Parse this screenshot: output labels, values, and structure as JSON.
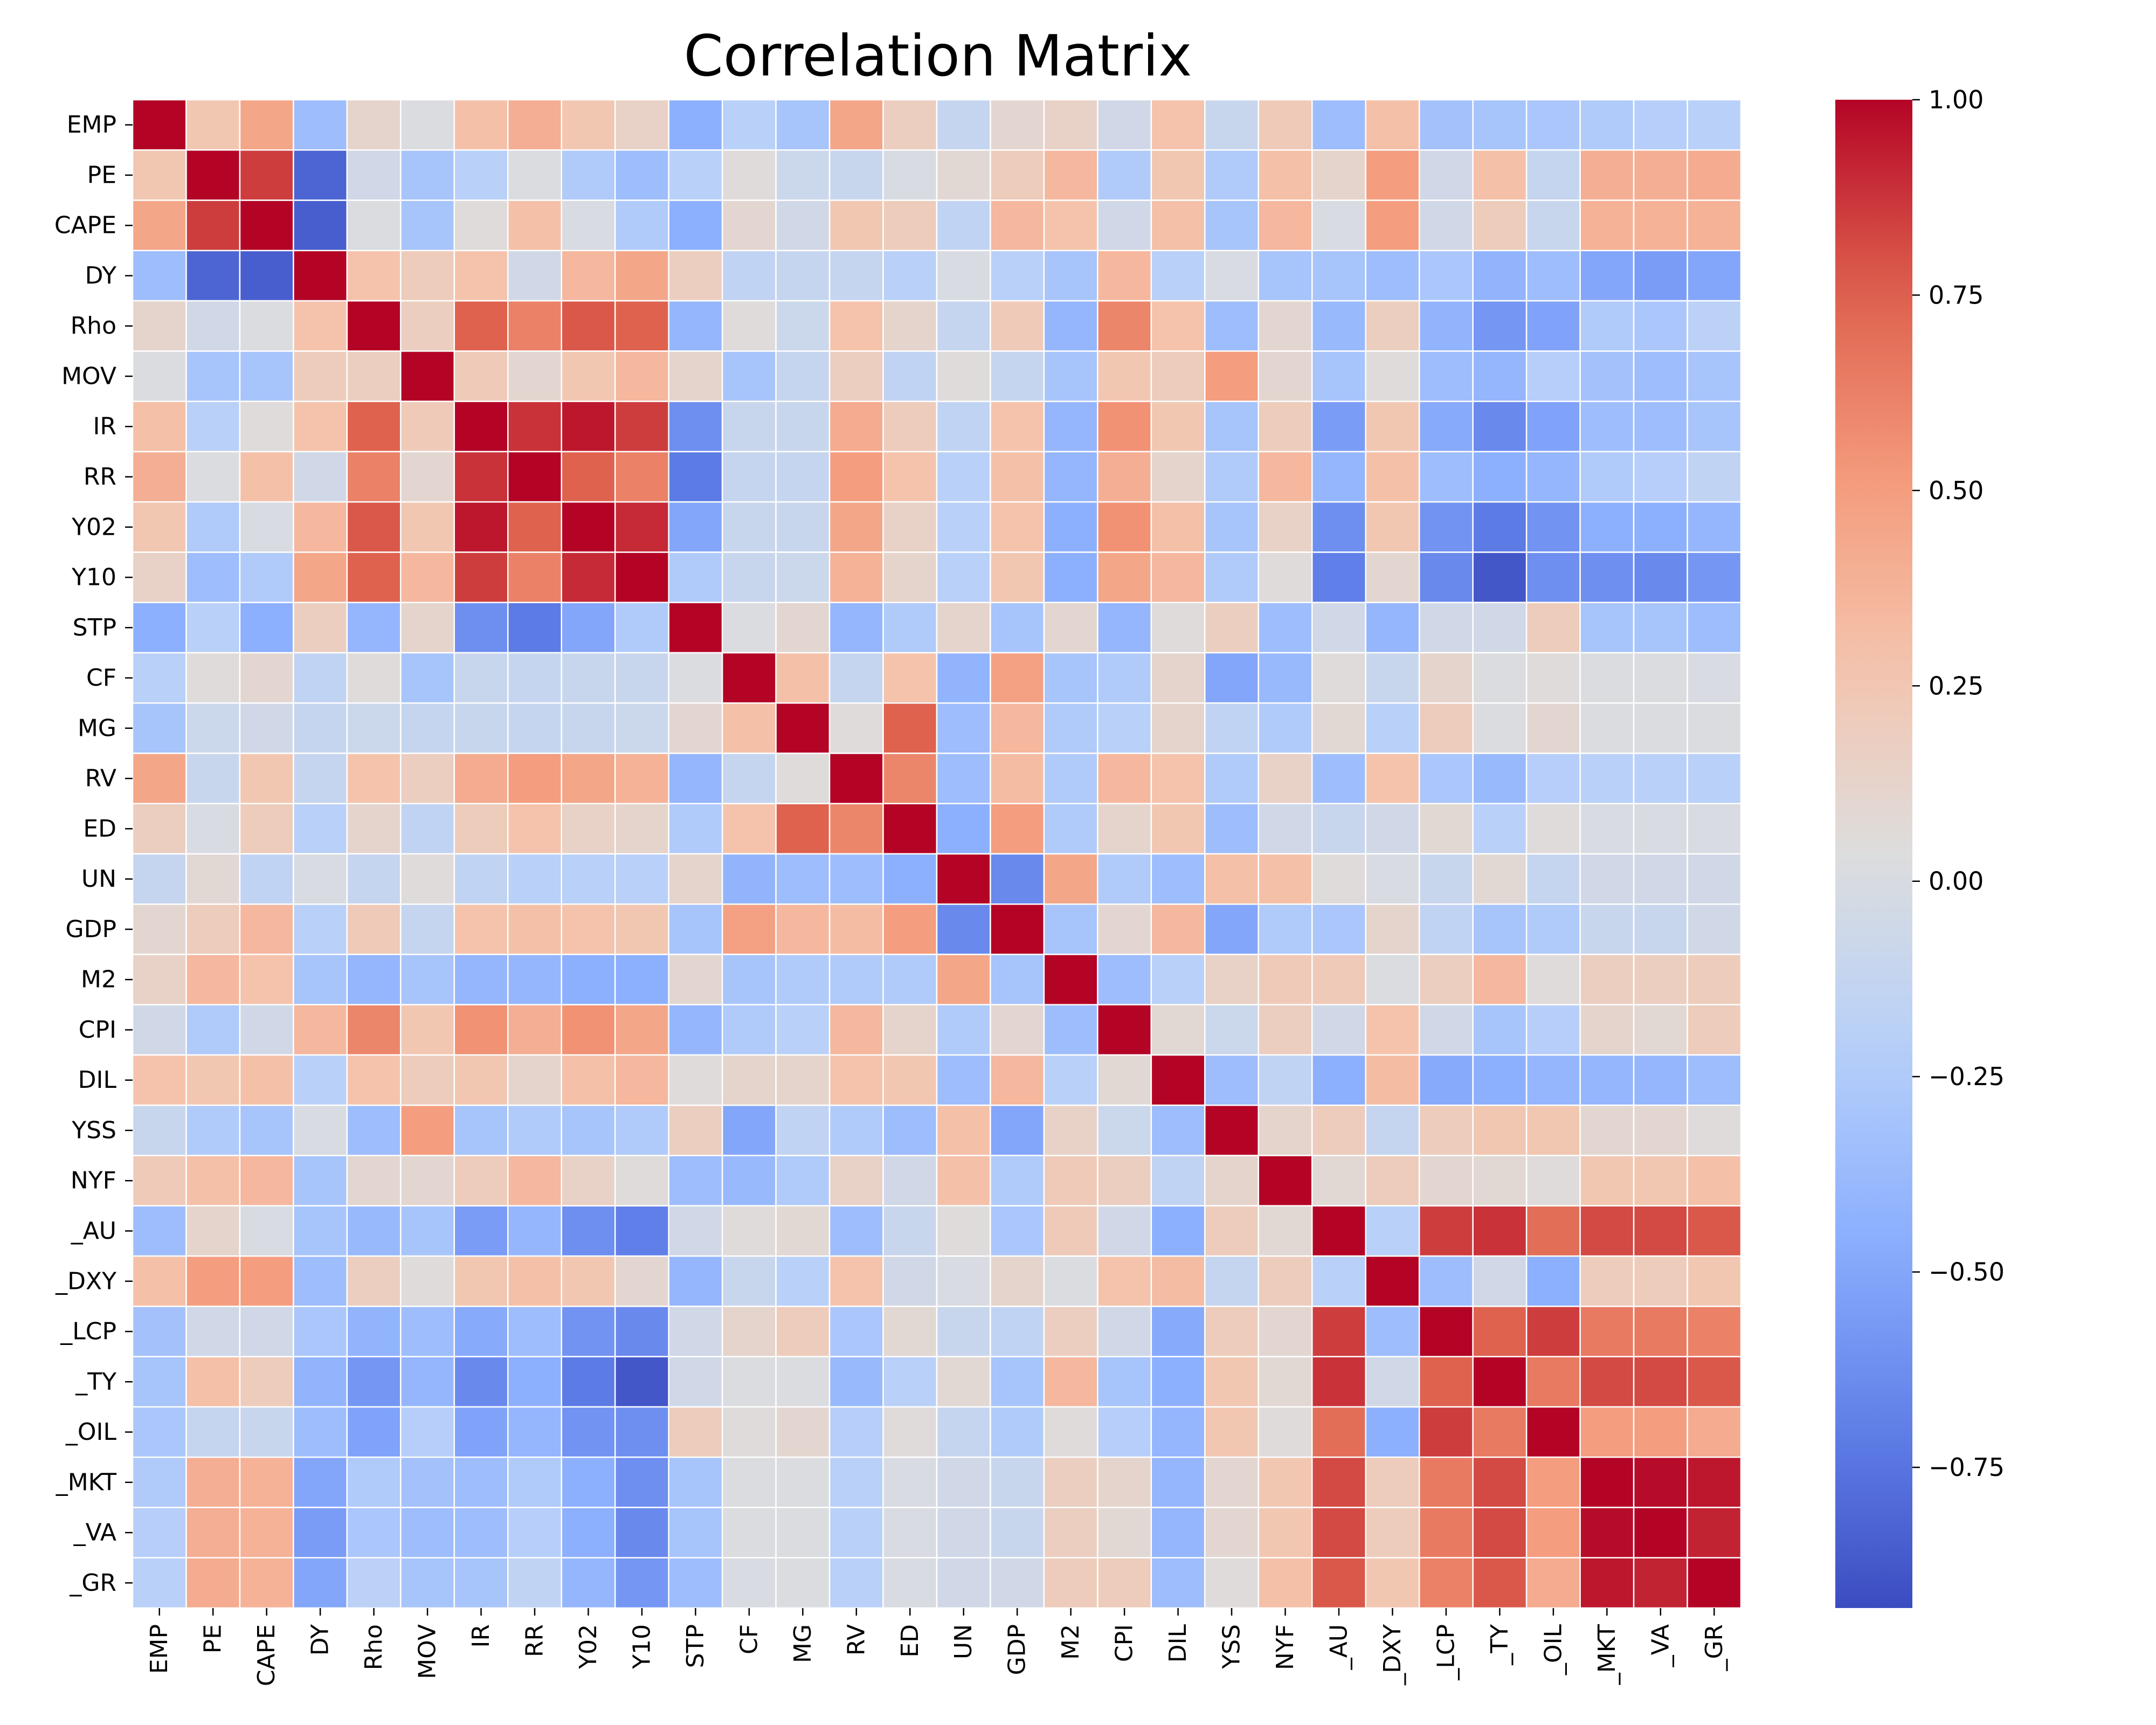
{
  "chart_data": {
    "type": "heatmap",
    "title": "Correlation Matrix",
    "colormap": "coolwarm",
    "vmin": -0.93,
    "vmax": 1.0,
    "labels": [
      "EMP",
      "PE",
      "CAPE",
      "DY",
      "Rho",
      "MOV ",
      "IR",
      "RR",
      "Y02",
      "Y10",
      "STP",
      "CF",
      "MG",
      "RV",
      "ED",
      "UN",
      "GDP",
      "M2",
      "CPI",
      "DIL",
      "YSS",
      "NYF",
      "_AU",
      "_DXY",
      "_LCP",
      "_TY",
      "_OIL",
      "_MKT",
      "_VA",
      "_GR"
    ],
    "colorbar_ticks": [
      1.0,
      0.75,
      0.5,
      0.25,
      0.0,
      -0.25,
      -0.5,
      -0.75
    ],
    "colorbar_tick_labels": [
      "1.00",
      "0.75",
      "0.50",
      "0.25",
      "0.00",
      "−0.25",
      "−0.50",
      "−0.75"
    ],
    "matrix": [
      [
        1.0,
        0.25,
        0.45,
        -0.35,
        0.12,
        0.02,
        0.3,
        0.4,
        0.25,
        0.15,
        -0.45,
        -0.2,
        -0.3,
        0.45,
        0.18,
        -0.12,
        0.1,
        0.15,
        -0.05,
        0.28,
        -0.1,
        0.22,
        -0.35,
        0.3,
        -0.32,
        -0.3,
        -0.28,
        -0.25,
        -0.22,
        -0.2
      ],
      [
        0.25,
        1.0,
        0.85,
        -0.82,
        -0.05,
        -0.3,
        -0.2,
        0.02,
        -0.25,
        -0.35,
        -0.2,
        0.05,
        -0.08,
        -0.1,
        0.0,
        0.08,
        0.2,
        0.35,
        -0.25,
        0.25,
        -0.25,
        0.3,
        0.12,
        0.5,
        -0.05,
        0.3,
        -0.12,
        0.4,
        0.4,
        0.42
      ],
      [
        0.45,
        0.85,
        1.0,
        -0.85,
        0.02,
        -0.3,
        0.05,
        0.3,
        0.0,
        -0.25,
        -0.45,
        0.1,
        -0.05,
        0.25,
        0.2,
        -0.15,
        0.35,
        0.28,
        -0.05,
        0.3,
        -0.3,
        0.35,
        0.0,
        0.5,
        -0.05,
        0.2,
        -0.1,
        0.38,
        0.38,
        0.38
      ],
      [
        -0.35,
        -0.82,
        -0.85,
        1.0,
        0.28,
        0.2,
        0.28,
        -0.05,
        0.35,
        0.45,
        0.18,
        -0.15,
        -0.12,
        -0.12,
        -0.2,
        0.0,
        -0.2,
        -0.3,
        0.35,
        -0.2,
        0.0,
        -0.3,
        -0.3,
        -0.35,
        -0.28,
        -0.42,
        -0.35,
        -0.5,
        -0.55,
        -0.5
      ],
      [
        0.12,
        -0.05,
        0.02,
        0.28,
        1.0,
        0.18,
        0.75,
        0.62,
        0.78,
        0.75,
        -0.4,
        0.05,
        -0.08,
        0.28,
        0.12,
        -0.12,
        0.22,
        -0.4,
        0.6,
        0.28,
        -0.35,
        0.1,
        -0.38,
        0.18,
        -0.42,
        -0.58,
        -0.52,
        -0.25,
        -0.28,
        -0.18
      ],
      [
        0.02,
        -0.3,
        -0.3,
        0.2,
        0.18,
        1.0,
        0.22,
        0.1,
        0.25,
        0.35,
        0.12,
        -0.3,
        -0.12,
        0.18,
        -0.15,
        0.05,
        -0.12,
        -0.3,
        0.25,
        0.2,
        0.5,
        0.1,
        -0.3,
        0.05,
        -0.35,
        -0.4,
        -0.22,
        -0.32,
        -0.35,
        -0.3
      ],
      [
        0.3,
        -0.2,
        0.05,
        0.28,
        0.75,
        0.22,
        1.0,
        0.88,
        0.95,
        0.85,
        -0.62,
        -0.1,
        -0.1,
        0.42,
        0.2,
        -0.15,
        0.28,
        -0.4,
        0.55,
        0.25,
        -0.3,
        0.2,
        -0.55,
        0.25,
        -0.48,
        -0.65,
        -0.52,
        -0.35,
        -0.35,
        -0.3
      ],
      [
        0.4,
        0.02,
        0.3,
        -0.05,
        0.62,
        0.1,
        0.88,
        1.0,
        0.75,
        0.62,
        -0.72,
        -0.12,
        -0.12,
        0.5,
        0.28,
        -0.2,
        0.3,
        -0.4,
        0.4,
        0.12,
        -0.25,
        0.35,
        -0.4,
        0.3,
        -0.35,
        -0.45,
        -0.4,
        -0.25,
        -0.22,
        -0.15
      ],
      [
        0.25,
        -0.25,
        0.0,
        0.35,
        0.78,
        0.25,
        0.95,
        0.75,
        1.0,
        0.9,
        -0.5,
        -0.1,
        -0.1,
        0.45,
        0.15,
        -0.2,
        0.28,
        -0.45,
        0.55,
        0.3,
        -0.3,
        0.15,
        -0.62,
        0.25,
        -0.6,
        -0.72,
        -0.6,
        -0.45,
        -0.45,
        -0.4
      ],
      [
        0.15,
        -0.35,
        -0.25,
        0.45,
        0.75,
        0.35,
        0.85,
        0.62,
        0.9,
        1.0,
        -0.25,
        -0.1,
        -0.08,
        0.38,
        0.12,
        -0.2,
        0.25,
        -0.45,
        0.45,
        0.35,
        -0.25,
        0.05,
        -0.7,
        0.1,
        -0.65,
        -0.88,
        -0.62,
        -0.62,
        -0.65,
        -0.58
      ],
      [
        -0.45,
        -0.2,
        -0.45,
        0.18,
        -0.4,
        0.12,
        -0.62,
        -0.72,
        -0.5,
        -0.25,
        1.0,
        0.02,
        0.1,
        -0.4,
        -0.25,
        0.12,
        -0.3,
        0.1,
        -0.4,
        0.05,
        0.18,
        -0.35,
        -0.05,
        -0.4,
        -0.05,
        -0.05,
        0.2,
        -0.3,
        -0.3,
        -0.35
      ],
      [
        -0.2,
        0.05,
        0.1,
        -0.15,
        0.05,
        -0.3,
        -0.1,
        -0.12,
        -0.1,
        -0.1,
        0.02,
        1.0,
        0.3,
        -0.12,
        0.28,
        -0.42,
        0.48,
        -0.3,
        -0.25,
        0.12,
        -0.5,
        -0.38,
        0.05,
        -0.1,
        0.12,
        0.02,
        0.05,
        0.02,
        0.02,
        0.0
      ],
      [
        -0.3,
        -0.08,
        -0.05,
        -0.12,
        -0.08,
        -0.12,
        -0.1,
        -0.12,
        -0.1,
        -0.08,
        0.1,
        0.3,
        1.0,
        0.05,
        0.75,
        -0.35,
        0.35,
        -0.25,
        -0.2,
        0.12,
        -0.15,
        -0.25,
        0.08,
        -0.2,
        0.2,
        0.02,
        0.1,
        0.02,
        0.02,
        0.02
      ],
      [
        0.45,
        -0.1,
        0.25,
        -0.12,
        0.28,
        0.18,
        0.42,
        0.5,
        0.45,
        0.38,
        -0.4,
        -0.12,
        0.05,
        1.0,
        0.6,
        -0.35,
        0.32,
        -0.25,
        0.35,
        0.28,
        -0.25,
        0.15,
        -0.35,
        0.28,
        -0.28,
        -0.38,
        -0.22,
        -0.2,
        -0.2,
        -0.2
      ],
      [
        0.18,
        0.0,
        0.2,
        -0.2,
        0.12,
        -0.15,
        0.2,
        0.28,
        0.15,
        0.12,
        -0.25,
        0.28,
        0.75,
        0.6,
        1.0,
        -0.45,
        0.5,
        -0.25,
        0.12,
        0.25,
        -0.35,
        -0.05,
        -0.1,
        -0.05,
        0.08,
        -0.2,
        0.05,
        0.0,
        0.0,
        0.0
      ],
      [
        -0.12,
        0.08,
        -0.15,
        0.0,
        -0.12,
        0.05,
        -0.15,
        -0.2,
        -0.2,
        -0.2,
        0.12,
        -0.42,
        -0.35,
        -0.35,
        -0.45,
        1.0,
        -0.65,
        0.45,
        -0.25,
        -0.35,
        0.3,
        0.3,
        0.05,
        0.0,
        -0.1,
        0.08,
        -0.12,
        -0.05,
        -0.05,
        -0.05
      ],
      [
        0.1,
        0.2,
        0.35,
        -0.2,
        0.22,
        -0.12,
        0.28,
        0.3,
        0.28,
        0.25,
        -0.3,
        0.48,
        0.35,
        0.32,
        0.5,
        -0.65,
        1.0,
        -0.3,
        0.1,
        0.35,
        -0.5,
        -0.25,
        -0.28,
        0.12,
        -0.15,
        -0.3,
        -0.25,
        -0.1,
        -0.1,
        -0.05
      ],
      [
        0.15,
        0.35,
        0.28,
        -0.3,
        -0.4,
        -0.3,
        -0.4,
        -0.4,
        -0.45,
        -0.45,
        0.1,
        -0.3,
        -0.25,
        -0.25,
        -0.25,
        0.45,
        -0.3,
        1.0,
        -0.35,
        -0.2,
        0.15,
        0.22,
        0.22,
        0.02,
        0.18,
        0.35,
        0.05,
        0.18,
        0.18,
        0.2
      ],
      [
        -0.05,
        -0.25,
        -0.05,
        0.35,
        0.6,
        0.25,
        0.55,
        0.4,
        0.55,
        0.45,
        -0.4,
        -0.25,
        -0.2,
        0.35,
        0.12,
        -0.25,
        0.1,
        -0.35,
        1.0,
        0.08,
        -0.08,
        0.18,
        -0.05,
        0.28,
        -0.05,
        -0.3,
        -0.22,
        0.12,
        0.08,
        0.2
      ],
      [
        0.28,
        0.25,
        0.3,
        -0.2,
        0.28,
        0.2,
        0.25,
        0.12,
        0.3,
        0.35,
        0.05,
        0.12,
        0.12,
        0.28,
        0.25,
        -0.35,
        0.35,
        -0.2,
        0.08,
        1.0,
        -0.35,
        -0.15,
        -0.45,
        0.32,
        -0.48,
        -0.45,
        -0.4,
        -0.4,
        -0.4,
        -0.35
      ],
      [
        -0.1,
        -0.25,
        -0.3,
        0.0,
        -0.35,
        0.5,
        -0.3,
        -0.25,
        -0.3,
        -0.25,
        0.18,
        -0.5,
        -0.15,
        -0.25,
        -0.35,
        0.3,
        -0.5,
        0.15,
        -0.08,
        -0.35,
        1.0,
        0.12,
        0.2,
        -0.12,
        0.2,
        0.25,
        0.25,
        0.1,
        0.1,
        0.05
      ],
      [
        0.22,
        0.3,
        0.35,
        -0.3,
        0.1,
        0.1,
        0.2,
        0.35,
        0.15,
        0.05,
        -0.35,
        -0.38,
        -0.25,
        0.15,
        -0.05,
        0.3,
        -0.25,
        0.22,
        0.18,
        -0.15,
        0.12,
        1.0,
        0.08,
        0.2,
        0.1,
        0.08,
        0.05,
        0.25,
        0.25,
        0.3
      ],
      [
        -0.35,
        0.12,
        0.0,
        -0.3,
        -0.38,
        -0.3,
        -0.55,
        -0.4,
        -0.62,
        -0.7,
        -0.05,
        0.05,
        0.08,
        -0.35,
        -0.1,
        0.05,
        -0.28,
        0.22,
        -0.05,
        -0.45,
        0.2,
        0.08,
        1.0,
        -0.2,
        0.85,
        0.88,
        0.7,
        0.82,
        0.82,
        0.78
      ],
      [
        0.3,
        0.5,
        0.5,
        -0.35,
        0.18,
        0.05,
        0.25,
        0.3,
        0.25,
        0.1,
        -0.4,
        -0.1,
        -0.2,
        0.28,
        -0.05,
        0.0,
        0.12,
        0.02,
        0.28,
        0.32,
        -0.12,
        0.2,
        -0.2,
        1.0,
        -0.35,
        -0.05,
        -0.45,
        0.2,
        0.2,
        0.25
      ],
      [
        -0.32,
        -0.05,
        -0.05,
        -0.28,
        -0.42,
        -0.35,
        -0.48,
        -0.35,
        -0.6,
        -0.65,
        -0.05,
        0.12,
        0.2,
        -0.28,
        0.08,
        -0.1,
        -0.15,
        0.18,
        -0.05,
        -0.48,
        0.2,
        0.1,
        0.85,
        -0.35,
        1.0,
        0.75,
        0.85,
        0.65,
        0.65,
        0.62
      ],
      [
        -0.3,
        0.3,
        0.2,
        -0.42,
        -0.58,
        -0.4,
        -0.65,
        -0.45,
        -0.72,
        -0.88,
        -0.05,
        0.02,
        0.02,
        -0.38,
        -0.2,
        0.08,
        -0.3,
        0.35,
        -0.3,
        -0.45,
        0.25,
        0.08,
        0.88,
        -0.05,
        0.75,
        1.0,
        0.65,
        0.82,
        0.82,
        0.78
      ],
      [
        -0.28,
        -0.12,
        -0.1,
        -0.35,
        -0.52,
        -0.22,
        -0.52,
        -0.4,
        -0.6,
        -0.62,
        0.2,
        0.05,
        0.1,
        -0.22,
        0.05,
        -0.12,
        -0.25,
        0.05,
        -0.22,
        -0.4,
        0.25,
        0.05,
        0.7,
        -0.45,
        0.85,
        0.65,
        1.0,
        0.5,
        0.5,
        0.42
      ],
      [
        -0.25,
        0.4,
        0.38,
        -0.5,
        -0.25,
        -0.32,
        -0.35,
        -0.25,
        -0.45,
        -0.62,
        -0.3,
        0.02,
        0.02,
        -0.2,
        0.0,
        -0.05,
        -0.1,
        0.18,
        0.12,
        -0.4,
        0.1,
        0.25,
        0.82,
        0.2,
        0.65,
        0.82,
        0.5,
        1.0,
        0.98,
        0.95
      ],
      [
        -0.22,
        0.4,
        0.38,
        -0.55,
        -0.28,
        -0.35,
        -0.35,
        -0.22,
        -0.45,
        -0.65,
        -0.3,
        0.02,
        0.02,
        -0.2,
        0.0,
        -0.05,
        -0.1,
        0.18,
        0.08,
        -0.4,
        0.1,
        0.25,
        0.82,
        0.2,
        0.65,
        0.82,
        0.5,
        0.98,
        1.0,
        0.92
      ],
      [
        -0.2,
        0.42,
        0.38,
        -0.5,
        -0.18,
        -0.3,
        -0.3,
        -0.15,
        -0.4,
        -0.58,
        -0.35,
        0.0,
        0.02,
        -0.2,
        0.0,
        -0.05,
        -0.05,
        0.2,
        0.2,
        -0.35,
        0.05,
        0.3,
        0.78,
        0.25,
        0.62,
        0.78,
        0.42,
        0.95,
        0.92,
        1.0
      ]
    ]
  }
}
